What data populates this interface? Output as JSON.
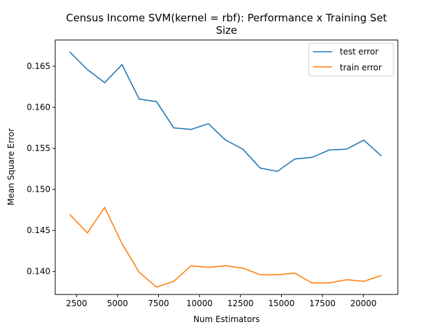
{
  "chart_data": {
    "type": "line",
    "title": [
      "Census Income SVM(kernel = rbf): Performance x Training Set",
      "Size"
    ],
    "xlabel": "Num Estimators",
    "ylabel": "Mean Square Error",
    "xlim": [
      1200,
      22100
    ],
    "ylim": [
      0.1372,
      0.1682
    ],
    "xticks": [
      2500,
      5000,
      7500,
      10000,
      12500,
      15000,
      17500,
      20000
    ],
    "xtick_labels": [
      "2500",
      "5000",
      "7500",
      "10000",
      "12500",
      "15000",
      "17500",
      "20000"
    ],
    "yticks": [
      0.14,
      0.145,
      0.15,
      0.155,
      0.16,
      0.165
    ],
    "ytick_labels": [
      "0.140",
      "0.145",
      "0.150",
      "0.155",
      "0.160",
      "0.165"
    ],
    "grid": false,
    "legend_position": "top-right",
    "x": [
      2108,
      3162,
      4216,
      5270,
      6324,
      7378,
      8432,
      9486,
      10540,
      11594,
      12648,
      13702,
      14756,
      15810,
      16864,
      17918,
      18972,
      20026,
      21080
    ],
    "series": [
      {
        "name": "test error",
        "color": "#1f77b4",
        "values": [
          0.1667,
          0.1646,
          0.163,
          0.1652,
          0.161,
          0.1607,
          0.1575,
          0.1573,
          0.158,
          0.156,
          0.1549,
          0.1526,
          0.1522,
          0.1537,
          0.1539,
          0.1548,
          0.1549,
          0.156,
          0.1541
        ]
      },
      {
        "name": "train error",
        "color": "#ff7f0e",
        "values": [
          0.1469,
          0.1447,
          0.1478,
          0.1434,
          0.1399,
          0.1381,
          0.1388,
          0.1407,
          0.1405,
          0.1407,
          0.1404,
          0.1396,
          0.1396,
          0.1398,
          0.1386,
          0.1386,
          0.139,
          0.1388,
          0.1395
        ]
      }
    ]
  }
}
